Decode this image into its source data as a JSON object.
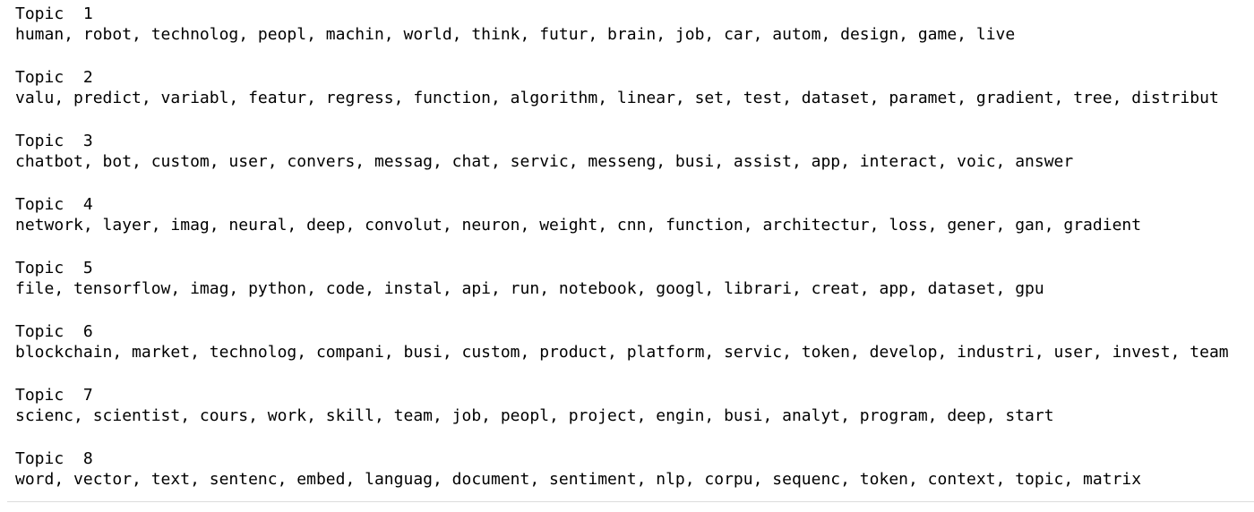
{
  "output": {
    "topics": [
      {
        "label": "Topic  1",
        "words": "human, robot, technolog, peopl, machin, world, think, futur, brain, job, car, autom, design, game, live"
      },
      {
        "label": "Topic  2",
        "words": "valu, predict, variabl, featur, regress, function, algorithm, linear, set, test, dataset, paramet, gradient, tree, distribut"
      },
      {
        "label": "Topic  3",
        "words": "chatbot, bot, custom, user, convers, messag, chat, servic, messeng, busi, assist, app, interact, voic, answer"
      },
      {
        "label": "Topic  4",
        "words": "network, layer, imag, neural, deep, convolut, neuron, weight, cnn, function, architectur, loss, gener, gan, gradient"
      },
      {
        "label": "Topic  5",
        "words": "file, tensorflow, imag, python, code, instal, api, run, notebook, googl, librari, creat, app, dataset, gpu"
      },
      {
        "label": "Topic  6",
        "words": "blockchain, market, technolog, compani, busi, custom, product, platform, servic, token, develop, industri, user, invest, team"
      },
      {
        "label": "Topic  7",
        "words": "scienc, scientist, cours, work, skill, team, job, peopl, project, engin, busi, analyt, program, deep, start"
      },
      {
        "label": "Topic  8",
        "words": "word, vector, text, sentenc, embed, languag, document, sentiment, nlp, corpu, sequenc, token, context, topic, matrix"
      }
    ]
  }
}
